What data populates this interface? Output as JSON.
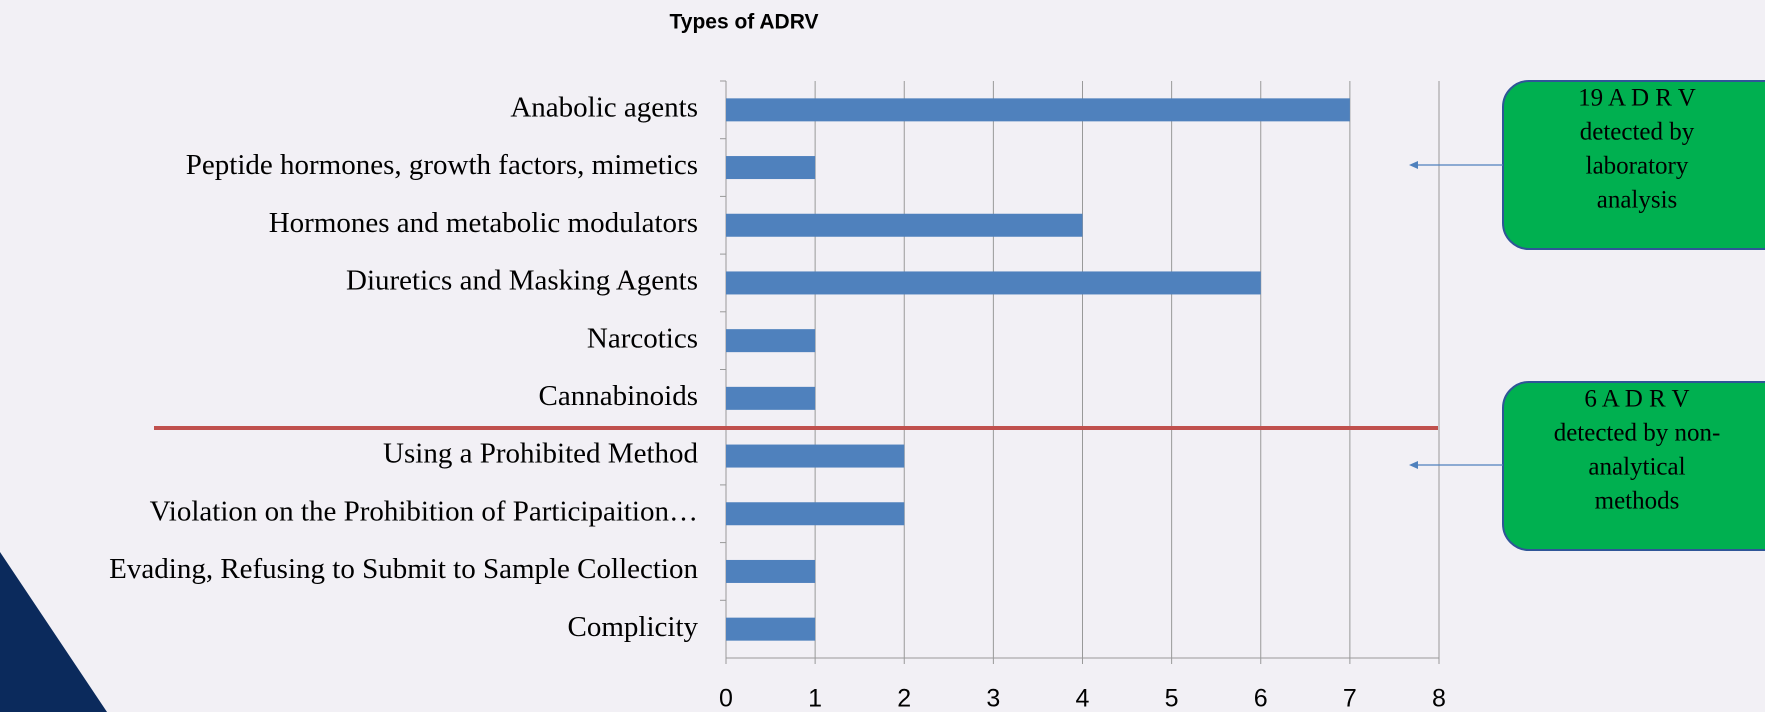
{
  "chart_data": {
    "type": "barh",
    "title": "Types of ADRV",
    "categories": [
      "Anabolic agents",
      "Peptide hormones, growth factors, mimetics",
      "Hormones and metabolic modulators",
      "Diuretics and Masking Agents",
      "Narcotics",
      "Cannabinoids",
      "Using a Prohibited Method",
      "Violation on the Prohibition of Participaition…",
      "Evading, Refusing to Submit to Sample Collection",
      "Complicity"
    ],
    "values": [
      7,
      1,
      4,
      6,
      1,
      1,
      2,
      2,
      1,
      1
    ],
    "color": "#4f81bd",
    "xlim": [
      0,
      8
    ],
    "xticks": [
      0,
      1,
      2,
      3,
      4,
      5,
      6,
      7,
      8
    ],
    "grid": true,
    "annotations": [
      {
        "lines": [
          "19 A D R V",
          "detected by",
          "laboratory",
          "analysis"
        ],
        "color": "#00b050"
      },
      {
        "lines": [
          "6 A D R V",
          "detected by non-",
          "analytical",
          "methods"
        ],
        "color": "#00b050"
      }
    ]
  }
}
